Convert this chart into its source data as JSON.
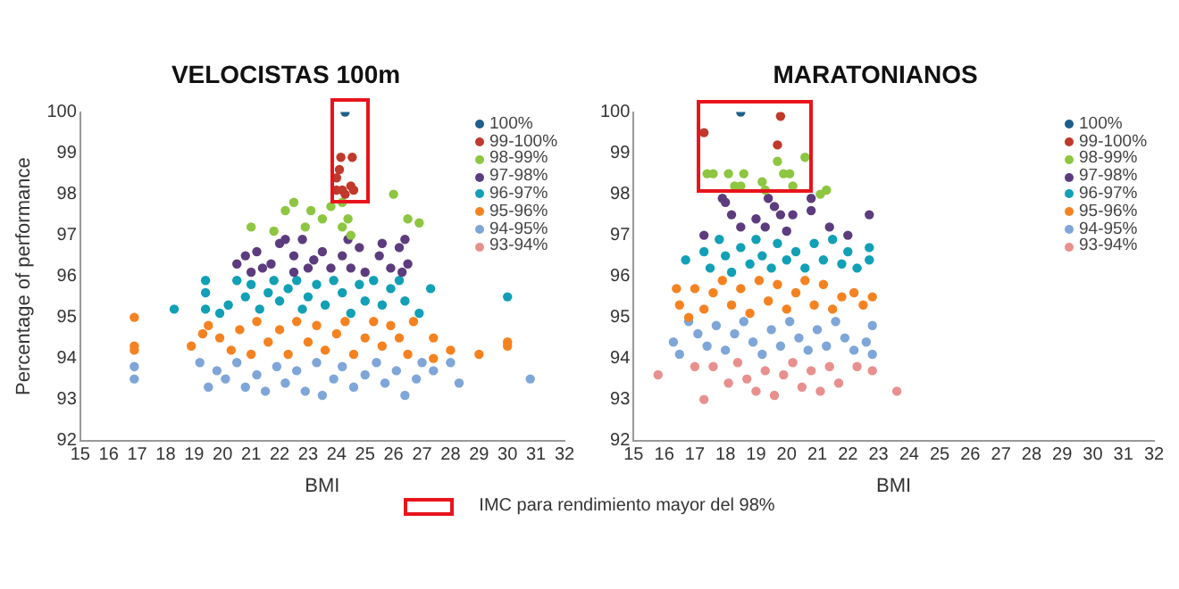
{
  "chart_data": [
    {
      "type": "scatter",
      "title": "VELOCISTAS 100m",
      "xlabel": "BMI",
      "ylabel": "Percentage of performance",
      "xlim": [
        15,
        32
      ],
      "ylim": [
        92,
        100
      ],
      "xticks": [
        15,
        16,
        17,
        18,
        19,
        20,
        21,
        22,
        23,
        24,
        25,
        26,
        27,
        28,
        29,
        30,
        31,
        32
      ],
      "yticks": [
        92,
        93,
        94,
        95,
        96,
        97,
        98,
        99,
        100
      ],
      "grid": false,
      "legend": "top right",
      "marker": "circle",
      "annotations": [
        "IMC para rendimiento mayor del 98%"
      ],
      "series": [
        {
          "name": "100%",
          "color": "#1f5f8b",
          "x": [
            24.3
          ],
          "values": [
            100
          ]
        },
        {
          "name": "99-100%",
          "color": "#c0392b",
          "x": [
            24.1,
            24.0,
            24.15,
            24.55,
            24.0,
            24.2,
            24.5,
            24.6,
            24.3
          ],
          "values": [
            98.6,
            98.4,
            98.9,
            98.9,
            98.1,
            98.1,
            98.2,
            98.1,
            98.0
          ]
        },
        {
          "name": "98-99%",
          "color": "#8dc641",
          "x": [
            21.0,
            21.8,
            22.2,
            22.5,
            23.1,
            23.5,
            23.8,
            24.2,
            24.4,
            24.5,
            24.2,
            26.0,
            26.5,
            26.9,
            22.9
          ],
          "values": [
            97.2,
            97.1,
            97.6,
            97.8,
            97.6,
            97.4,
            97.7,
            97.2,
            97.4,
            97.0,
            97.8,
            98.0,
            97.4,
            97.3,
            97.2
          ]
        },
        {
          "name": "97-98%",
          "color": "#5c3c7e",
          "x": [
            20.5,
            20.8,
            21.0,
            21.2,
            21.4,
            21.7,
            22.0,
            22.2,
            22.5,
            22.5,
            22.8,
            23.0,
            23.2,
            23.5,
            23.8,
            24.2,
            24.4,
            24.5,
            24.8,
            25.0,
            25.5,
            25.6,
            25.9,
            26.2,
            26.4,
            26.5,
            26.3
          ],
          "values": [
            96.3,
            96.5,
            96.1,
            96.6,
            96.2,
            96.3,
            96.8,
            96.9,
            96.5,
            96.1,
            96.9,
            96.2,
            96.4,
            96.6,
            96.2,
            96.5,
            96.9,
            96.2,
            96.7,
            96.1,
            96.5,
            96.8,
            96.2,
            96.7,
            96.9,
            96.3,
            96.1
          ]
        },
        {
          "name": "96-97%",
          "color": "#11a0b5",
          "x": [
            18.3,
            19.4,
            19.4,
            19.4,
            19.9,
            20.2,
            20.5,
            20.8,
            21.0,
            21.3,
            21.6,
            21.8,
            22.0,
            22.3,
            22.6,
            22.8,
            23.0,
            23.3,
            23.6,
            23.9,
            24.2,
            24.5,
            24.8,
            25.0,
            25.3,
            25.6,
            25.9,
            26.2,
            26.4,
            26.9,
            27.3,
            30.0
          ],
          "values": [
            95.2,
            95.9,
            95.6,
            95.2,
            95.1,
            95.3,
            95.9,
            95.5,
            95.8,
            95.2,
            95.6,
            95.9,
            95.4,
            95.7,
            95.9,
            95.2,
            95.5,
            95.8,
            95.3,
            95.9,
            95.6,
            95.1,
            95.8,
            95.4,
            95.9,
            95.3,
            95.7,
            95.9,
            95.4,
            95.1,
            95.7,
            95.5
          ]
        },
        {
          "name": "95-96%",
          "color": "#f58220",
          "x": [
            16.9,
            16.9,
            16.9,
            18.9,
            19.3,
            19.5,
            19.9,
            20.3,
            20.6,
            21.0,
            21.2,
            21.6,
            22.0,
            22.3,
            22.6,
            23.0,
            23.3,
            23.6,
            24.0,
            24.3,
            24.6,
            25.0,
            25.3,
            25.6,
            25.9,
            26.2,
            26.5,
            26.7,
            27.4,
            27.4,
            28.0,
            29.0,
            30.0,
            30.0
          ],
          "values": [
            95.0,
            94.3,
            94.2,
            94.3,
            94.6,
            94.8,
            94.5,
            94.2,
            94.7,
            94.1,
            94.9,
            94.4,
            94.7,
            94.1,
            94.9,
            94.4,
            94.8,
            94.2,
            94.6,
            94.9,
            94.1,
            94.5,
            94.9,
            94.3,
            94.8,
            94.5,
            94.1,
            94.9,
            94.5,
            94.0,
            94.2,
            94.1,
            94.4,
            94.3
          ]
        },
        {
          "name": "94-95%",
          "color": "#7ea6d8",
          "x": [
            16.9,
            16.9,
            19.2,
            19.5,
            19.8,
            20.1,
            20.5,
            20.8,
            21.2,
            21.5,
            21.9,
            22.2,
            22.6,
            22.9,
            23.3,
            23.5,
            23.9,
            24.2,
            24.6,
            25.0,
            25.4,
            25.7,
            26.1,
            26.4,
            26.8,
            27.0,
            27.4,
            28.0,
            28.3,
            30.8
          ],
          "values": [
            93.8,
            93.5,
            93.9,
            93.3,
            93.7,
            93.5,
            93.9,
            93.3,
            93.6,
            93.2,
            93.8,
            93.4,
            93.7,
            93.2,
            93.9,
            93.1,
            93.5,
            93.8,
            93.3,
            93.6,
            93.9,
            93.4,
            93.7,
            93.1,
            93.5,
            93.9,
            93.7,
            93.9,
            93.4,
            93.5
          ]
        },
        {
          "name": "93-94%",
          "color": "#e8908e"
        }
      ]
    },
    {
      "type": "scatter",
      "title": "MARATONIANOS",
      "xlabel": "BMI",
      "xlim": [
        15,
        32
      ],
      "ylim": [
        92,
        100
      ],
      "xticks": [
        15,
        16,
        17,
        18,
        19,
        20,
        21,
        22,
        23,
        24,
        25,
        26,
        27,
        28,
        29,
        30,
        31,
        32
      ],
      "yticks": [
        92,
        93,
        94,
        95,
        96,
        97,
        98,
        99,
        100
      ],
      "grid": false,
      "legend": "top right",
      "marker": "circle",
      "series": [
        {
          "name": "100%",
          "color": "#1f5f8b",
          "x": [
            18.5
          ],
          "values": [
            100
          ]
        },
        {
          "name": "99-100%",
          "color": "#c0392b",
          "x": [
            17.3,
            19.8,
            19.7
          ],
          "values": [
            99.5,
            99.9,
            99.2
          ]
        },
        {
          "name": "98-99%",
          "color": "#8dc641",
          "x": [
            17.4,
            17.6,
            18.1,
            18.3,
            18.6,
            18.5,
            19.2,
            19.3,
            19.7,
            19.9,
            20.1,
            20.2,
            20.6,
            21.3,
            21.1
          ],
          "values": [
            98.5,
            98.5,
            98.5,
            98.2,
            98.5,
            98.2,
            98.3,
            98.1,
            98.8,
            98.5,
            98.5,
            98.2,
            98.9,
            98.1,
            98.0
          ]
        },
        {
          "name": "97-98%",
          "color": "#5c3c7e",
          "x": [
            17.3,
            18.0,
            18.2,
            18.5,
            19.0,
            19.3,
            19.6,
            19.8,
            20.2,
            20.0,
            19.4,
            20.8,
            20.8,
            21.4,
            22.0,
            22.7,
            17.9
          ],
          "values": [
            97.0,
            97.8,
            97.5,
            97.2,
            97.4,
            97.2,
            97.7,
            97.5,
            97.5,
            97.1,
            97.9,
            97.6,
            97.9,
            97.2,
            97.0,
            97.5,
            97.9
          ]
        },
        {
          "name": "96-97%",
          "color": "#11a0b5",
          "x": [
            16.7,
            17.3,
            17.5,
            17.8,
            18.0,
            18.2,
            18.5,
            18.8,
            19.0,
            19.2,
            19.5,
            19.7,
            20.0,
            20.3,
            20.6,
            20.9,
            21.2,
            21.5,
            21.8,
            22.0,
            22.3,
            22.7,
            22.7
          ],
          "values": [
            96.4,
            96.6,
            96.2,
            96.9,
            96.5,
            96.1,
            96.7,
            96.3,
            96.9,
            96.5,
            96.2,
            96.8,
            96.4,
            96.6,
            96.2,
            96.8,
            96.4,
            96.9,
            96.3,
            96.6,
            96.2,
            96.7,
            96.4
          ]
        },
        {
          "name": "95-96%",
          "color": "#f58220",
          "x": [
            16.4,
            16.5,
            16.8,
            17.0,
            17.3,
            17.6,
            17.9,
            18.2,
            18.5,
            18.8,
            19.1,
            19.4,
            19.7,
            20.0,
            20.3,
            20.6,
            20.9,
            21.2,
            21.5,
            21.8,
            22.2,
            22.5,
            22.8
          ],
          "values": [
            95.7,
            95.3,
            95.0,
            95.7,
            95.2,
            95.6,
            95.9,
            95.3,
            95.7,
            95.1,
            95.9,
            95.4,
            95.8,
            95.2,
            95.6,
            95.9,
            95.3,
            95.8,
            95.2,
            95.5,
            95.6,
            95.3,
            95.5
          ]
        },
        {
          "name": "94-95%",
          "color": "#7ea6d8",
          "x": [
            16.3,
            16.5,
            16.8,
            17.1,
            17.4,
            17.7,
            18.0,
            18.3,
            18.6,
            18.9,
            19.2,
            19.5,
            19.8,
            20.1,
            20.4,
            20.7,
            21.0,
            21.3,
            21.6,
            21.9,
            22.2,
            22.6,
            22.8,
            22.8
          ],
          "values": [
            94.4,
            94.1,
            94.9,
            94.6,
            94.3,
            94.8,
            94.2,
            94.6,
            94.9,
            94.4,
            94.1,
            94.7,
            94.3,
            94.9,
            94.5,
            94.2,
            94.7,
            94.3,
            94.9,
            94.5,
            94.2,
            94.4,
            94.8,
            94.1
          ]
        },
        {
          "name": "93-94%",
          "color": "#e8908e",
          "x": [
            15.8,
            17.0,
            17.3,
            17.6,
            18.1,
            18.4,
            18.7,
            19.0,
            19.3,
            19.6,
            19.9,
            20.2,
            20.5,
            20.8,
            21.1,
            21.4,
            21.7,
            22.3,
            22.8,
            23.6
          ],
          "values": [
            93.6,
            93.8,
            93.0,
            93.8,
            93.4,
            93.9,
            93.5,
            93.2,
            93.7,
            93.1,
            93.6,
            93.9,
            93.3,
            93.7,
            93.2,
            93.8,
            93.4,
            93.8,
            93.7,
            93.2
          ]
        }
      ]
    }
  ]
}
